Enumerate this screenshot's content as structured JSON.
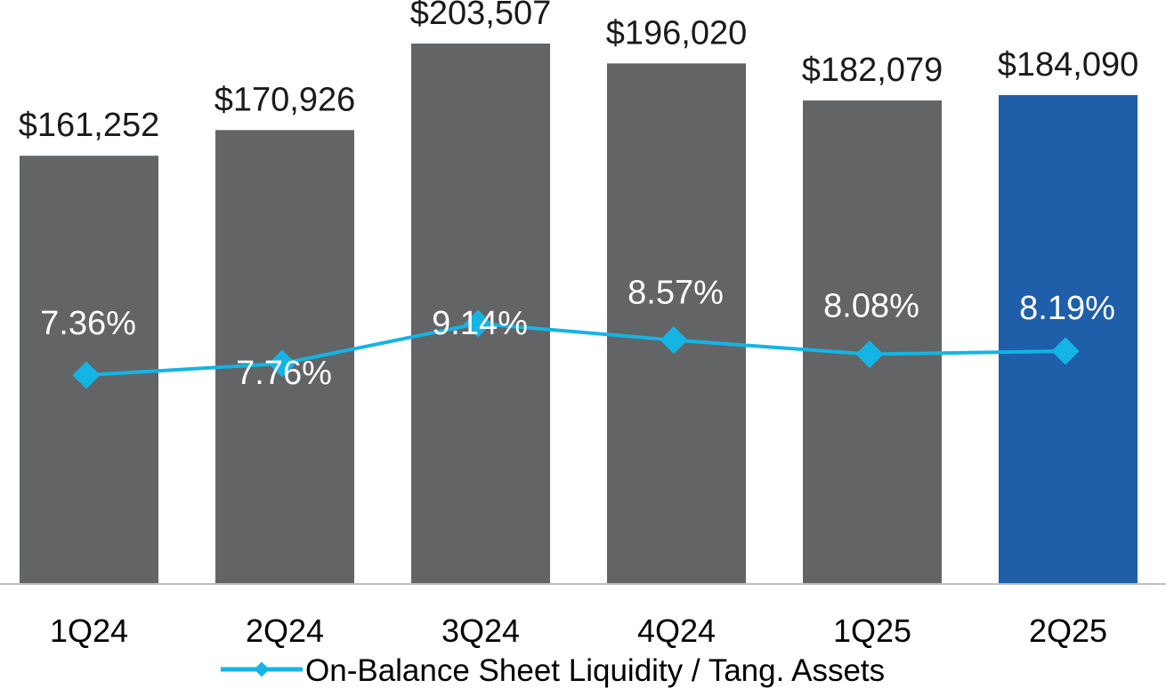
{
  "chart_data": {
    "type": "bar",
    "categories": [
      "1Q24",
      "2Q24",
      "3Q24",
      "4Q24",
      "1Q25",
      "2Q25"
    ],
    "series": [
      {
        "values": [
          161252,
          170926,
          203507,
          196020,
          182079,
          184090
        ],
        "value_labels": [
          "$161,252",
          "$170,926",
          "$203,507",
          "$196,020",
          "$182,079",
          "$184,090"
        ],
        "colors": [
          "#636466",
          "#636466",
          "#636466",
          "#636466",
          "#636466",
          "#1f5ea8"
        ]
      },
      {
        "name": "On-Balance Sheet Liquidity / Tang. Assets",
        "type": "line",
        "values": [
          7.36,
          7.76,
          9.14,
          8.57,
          8.08,
          8.19
        ],
        "value_labels": [
          "7.36%",
          "7.76%",
          "9.14%",
          "8.57%",
          "8.08%",
          "8.19%"
        ],
        "color": "#14b4e4"
      }
    ],
    "legend": "bottom",
    "grid": false
  }
}
